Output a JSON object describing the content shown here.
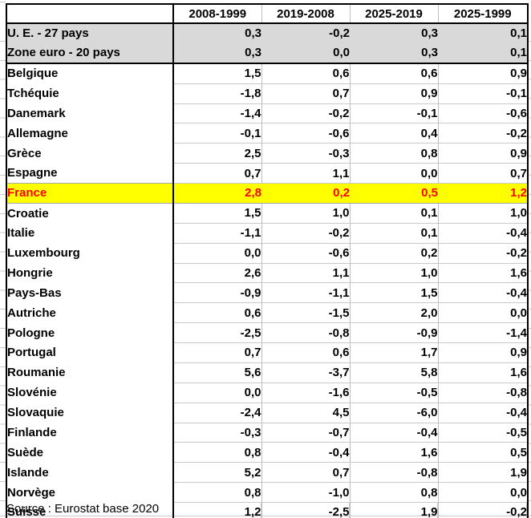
{
  "table": {
    "columns": [
      "2008-1999",
      "2019-2008",
      "2025-2019",
      "2025-1999"
    ],
    "aggregate_rows": [
      {
        "label": "U. E. - 27 pays",
        "values": [
          "0,3",
          "-0,2",
          "0,3",
          "0,1"
        ]
      },
      {
        "label": "Zone euro - 20 pays",
        "values": [
          "0,3",
          "0,0",
          "0,3",
          "0,1"
        ]
      }
    ],
    "country_rows": [
      {
        "label": "Belgique",
        "values": [
          "1,5",
          "0,6",
          "0,6",
          "0,9"
        ]
      },
      {
        "label": "Tchéquie",
        "values": [
          "-1,8",
          "0,7",
          "0,9",
          "-0,1"
        ]
      },
      {
        "label": "Danemark",
        "values": [
          "-1,4",
          "-0,2",
          "-0,1",
          "-0,6"
        ]
      },
      {
        "label": "Allemagne",
        "values": [
          "-0,1",
          "-0,6",
          "0,4",
          "-0,2"
        ]
      },
      {
        "label": "Grèce",
        "values": [
          "2,5",
          "-0,3",
          "0,8",
          "0,9"
        ]
      },
      {
        "label": "Espagne",
        "values": [
          "0,7",
          "1,1",
          "0,0",
          "0,7"
        ]
      },
      {
        "label": "France",
        "values": [
          "2,8",
          "0,2",
          "0,5",
          "1,2"
        ],
        "highlight": true
      },
      {
        "label": "Croatie",
        "values": [
          "1,5",
          "1,0",
          "0,1",
          "1,0"
        ]
      },
      {
        "label": "Italie",
        "values": [
          "-1,1",
          "-0,2",
          "0,1",
          "-0,4"
        ]
      },
      {
        "label": "Luxembourg",
        "values": [
          "0,0",
          "-0,6",
          "0,2",
          "-0,2"
        ]
      },
      {
        "label": "Hongrie",
        "values": [
          "2,6",
          "1,1",
          "1,0",
          "1,6"
        ]
      },
      {
        "label": "Pays-Bas",
        "values": [
          "-0,9",
          "-1,1",
          "1,5",
          "-0,4"
        ]
      },
      {
        "label": "Autriche",
        "values": [
          "0,6",
          "-1,5",
          "2,0",
          "0,0"
        ]
      },
      {
        "label": "Pologne",
        "values": [
          "-2,5",
          "-0,8",
          "-0,9",
          "-1,4"
        ]
      },
      {
        "label": "Portugal",
        "values": [
          "0,7",
          "0,6",
          "1,7",
          "0,9"
        ]
      },
      {
        "label": "Roumanie",
        "values": [
          "5,6",
          "-3,7",
          "5,8",
          "1,6"
        ]
      },
      {
        "label": "Slovénie",
        "values": [
          "0,0",
          "-1,6",
          "-0,5",
          "-0,8"
        ]
      },
      {
        "label": "Slovaquie",
        "values": [
          "-2,4",
          "4,5",
          "-6,0",
          "-0,4"
        ]
      },
      {
        "label": "Finlande",
        "values": [
          "-0,3",
          "-0,7",
          "-0,4",
          "-0,5"
        ]
      },
      {
        "label": "Suède",
        "values": [
          "0,8",
          "-0,4",
          "1,6",
          "0,5"
        ]
      },
      {
        "label": "Islande",
        "values": [
          "5,2",
          "0,7",
          "-0,8",
          "1,9"
        ]
      },
      {
        "label": "Norvège",
        "values": [
          "0,8",
          "-1,0",
          "0,8",
          "0,0"
        ]
      },
      {
        "label": "Suisse",
        "values": [
          "1,2",
          "-2,5",
          "1,9",
          "-0,2"
        ]
      }
    ]
  },
  "source": "Source : Eurostat base 2020",
  "colors": {
    "highlight_bg": "#FFFF00",
    "highlight_text": "#FF0000",
    "aggregate_bg": "#D9D9D9",
    "table_border": "#000000",
    "gridline": "#C9C9C9",
    "column_separator": "#BFBFBF"
  }
}
